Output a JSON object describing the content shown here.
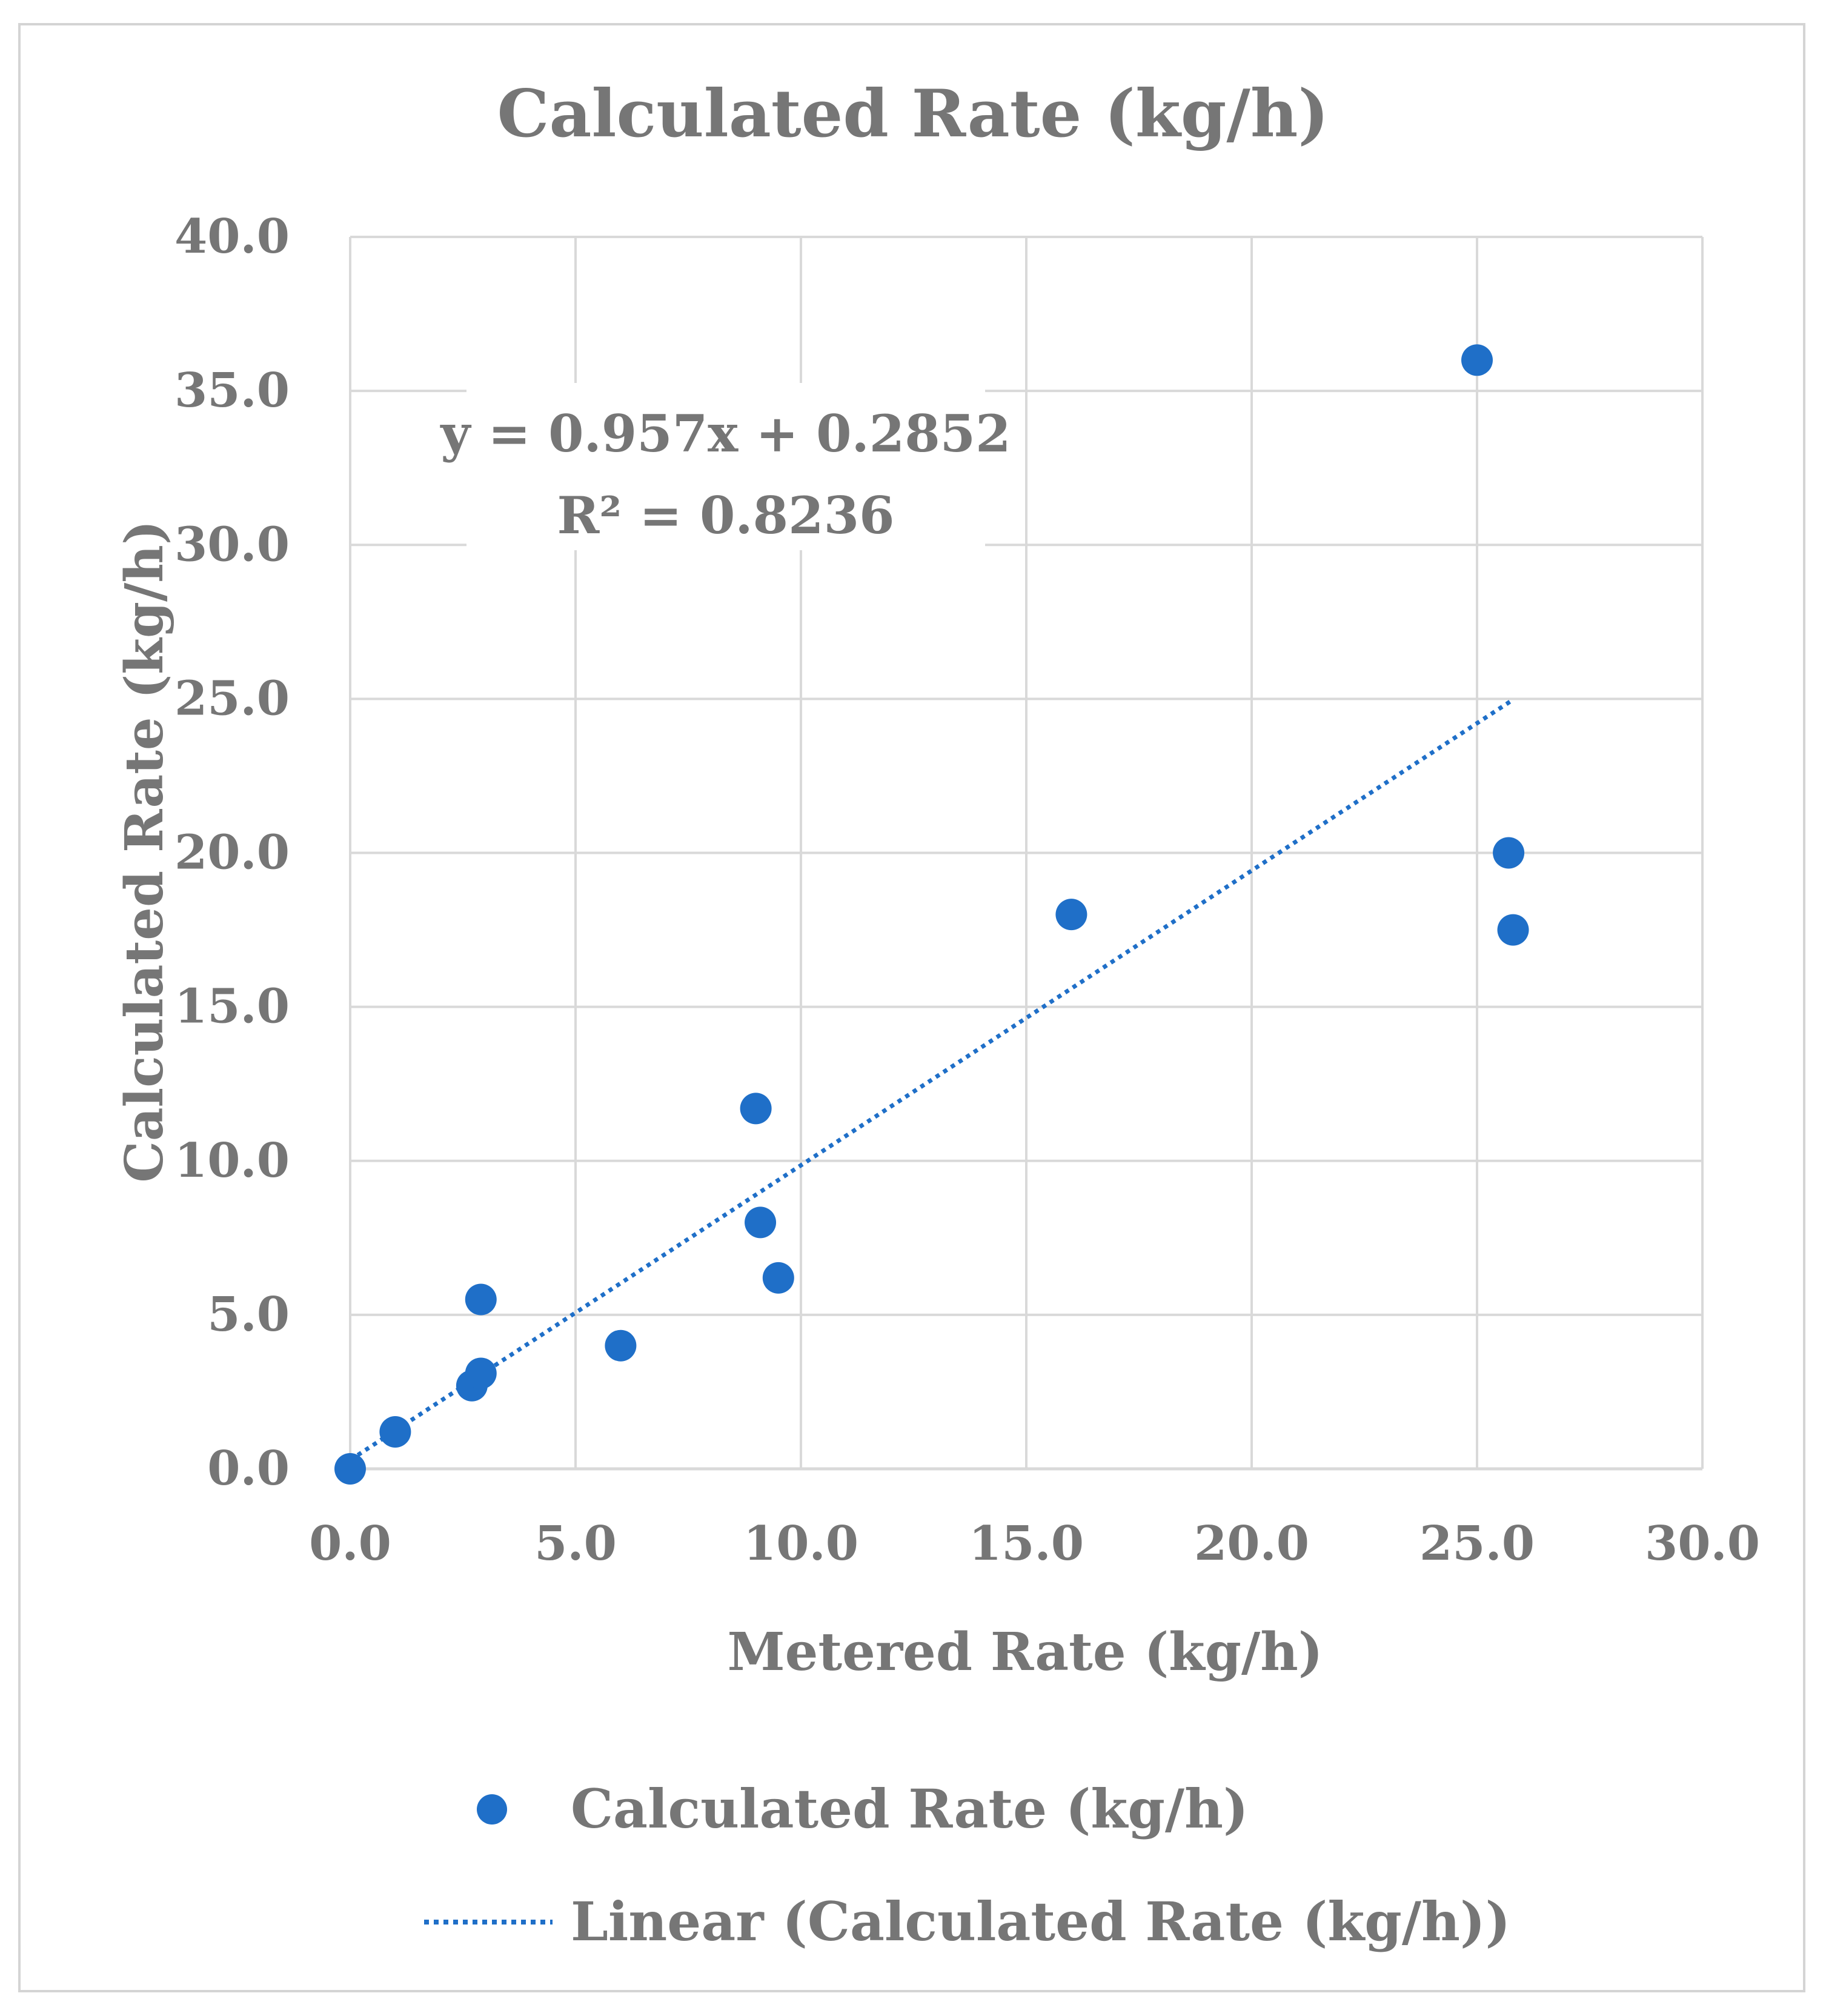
{
  "chart_data": {
    "type": "scatter",
    "title": "Calculated Rate (kg/h)",
    "xlabel": "Metered Rate (kg/h)",
    "ylabel": "Calculated Rate (kg/h)",
    "xlim": [
      0,
      30
    ],
    "ylim": [
      0,
      40
    ],
    "x_ticks": [
      "0.0",
      "5.0",
      "10.0",
      "15.0",
      "20.0",
      "25.0",
      "30.0"
    ],
    "y_ticks": [
      "0.0",
      "5.0",
      "10.0",
      "15.0",
      "20.0",
      "25.0",
      "30.0",
      "35.0",
      "40.0"
    ],
    "grid": true,
    "series": [
      {
        "name": "Calculated Rate (kg/h)",
        "color": "#1f6fc8",
        "points": [
          {
            "x": 0.0,
            "y": 0.0
          },
          {
            "x": 1.0,
            "y": 1.2
          },
          {
            "x": 2.7,
            "y": 2.7
          },
          {
            "x": 2.9,
            "y": 3.1
          },
          {
            "x": 2.9,
            "y": 5.5
          },
          {
            "x": 6.0,
            "y": 4.0
          },
          {
            "x": 9.0,
            "y": 11.7
          },
          {
            "x": 9.1,
            "y": 8.0
          },
          {
            "x": 9.5,
            "y": 6.2
          },
          {
            "x": 16.0,
            "y": 18.0
          },
          {
            "x": 25.0,
            "y": 36.0
          },
          {
            "x": 25.7,
            "y": 20.0
          },
          {
            "x": 25.8,
            "y": 17.5
          }
        ]
      }
    ],
    "trendline": {
      "name": "Linear (Calculated Rate (kg/h))",
      "slope": 0.957,
      "intercept": 0.2852,
      "x_range": [
        0,
        25.8
      ],
      "color": "#1f6fc8",
      "equation": "y = 0.957x + 0.2852",
      "r_squared": "R² = 0.8236"
    },
    "legend_position": "bottom"
  }
}
